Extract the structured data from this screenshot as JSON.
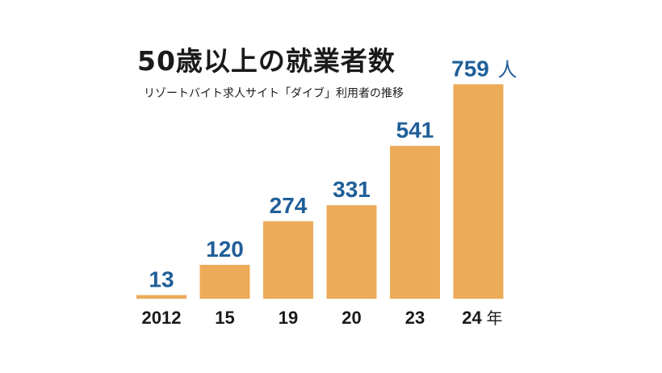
{
  "chart_data": {
    "type": "bar",
    "title": "50歳以上の就業者数",
    "subtitle": "リゾートバイト求人サイト「ダイブ」利用者の推移",
    "categories": [
      "2012",
      "15",
      "19",
      "20",
      "23",
      "24"
    ],
    "values": [
      13,
      120,
      274,
      331,
      541,
      759
    ],
    "value_unit": "人",
    "category_unit": "年",
    "ylim": [
      0,
      800
    ],
    "grid": false,
    "legend": "none",
    "colors": {
      "bar": "#ecab59",
      "value_label": "#1f5f99",
      "text": "#1a1a1a"
    }
  }
}
